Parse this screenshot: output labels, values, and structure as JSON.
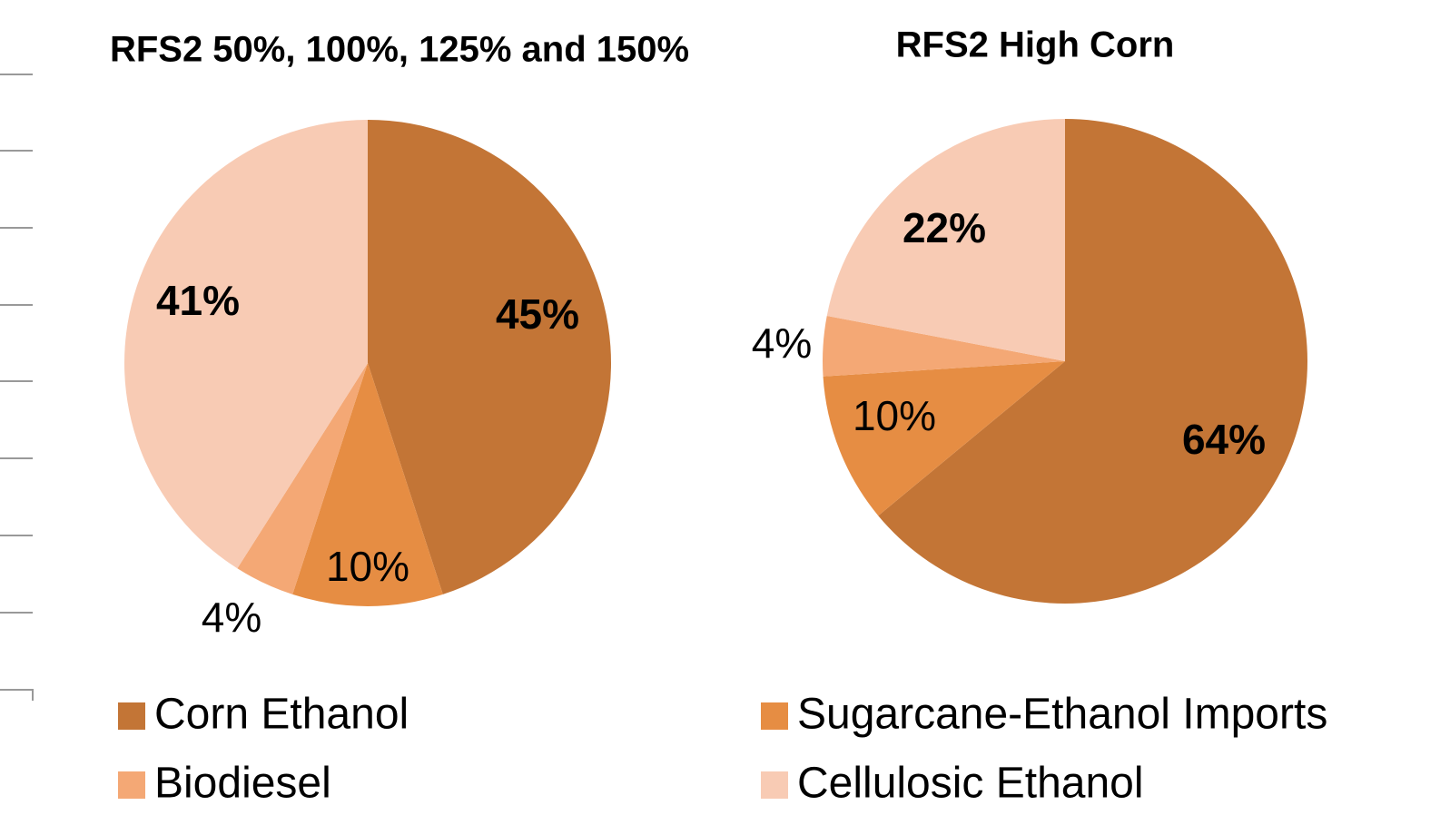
{
  "chart_data": [
    {
      "type": "pie",
      "title": "RFS2 50%, 100%, 125% and 150%",
      "values": [
        45,
        10,
        4,
        41
      ],
      "value_labels": [
        "45%",
        "10%",
        "4%",
        "41%"
      ]
    },
    {
      "type": "pie",
      "title": "RFS2 High Corn",
      "values": [
        64,
        10,
        4,
        22
      ],
      "value_labels": [
        "64%",
        "10%",
        "4%",
        "22%"
      ]
    }
  ],
  "legend": {
    "labels": [
      "Corn Ethanol",
      "Sugarcane-Ethanol Imports",
      "Biodiesel",
      "Cellulosic Ethanol"
    ],
    "colors": [
      "#c37536",
      "#e68d43",
      "#f4a875",
      "#f8cbb4"
    ]
  }
}
